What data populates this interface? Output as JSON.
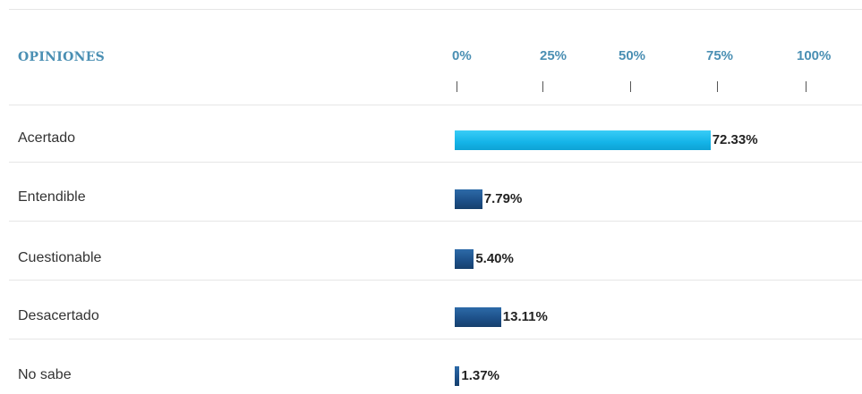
{
  "header": {
    "label": "OPINIONES"
  },
  "axis": {
    "ticks": [
      "0%",
      "25%",
      "50%",
      "75%",
      "100%"
    ]
  },
  "chart_data": {
    "type": "bar",
    "orientation": "horizontal",
    "title": "",
    "xlabel": "",
    "ylabel": "",
    "xlim": [
      0,
      100
    ],
    "categories": [
      "Acertado",
      "Entendible",
      "Cuestionable",
      "Desacertado",
      "No sabe"
    ],
    "values": [
      72.33,
      7.79,
      5.4,
      13.11,
      1.37
    ],
    "value_labels": [
      "72.33%",
      "7.79%",
      "5.40%",
      "13.11%",
      "1.37%"
    ],
    "highlighted_index": 0,
    "colors": {
      "highlight": "#14b4e8",
      "default": "#1c4f87",
      "axis_text": "#4a8fb3"
    }
  }
}
